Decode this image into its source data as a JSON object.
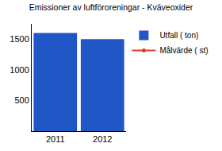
{
  "chart_data": {
    "type": "bar",
    "title": "Emissioner av luftföroreningar - Kväveoxider",
    "categories": [
      "2011",
      "2012"
    ],
    "series": [
      {
        "name": "Utfall ( ton)",
        "type": "bar",
        "color": "#2156c6",
        "values": [
          1600,
          1500
        ]
      },
      {
        "name": "Målvärde ( st)",
        "type": "line",
        "color": "#e03c31",
        "marker": "circle",
        "values": [
          null,
          null
        ]
      }
    ],
    "ylim": [
      0,
      1750
    ],
    "yticks": [
      500,
      1000,
      1500
    ],
    "grid": false,
    "legend": "right"
  }
}
